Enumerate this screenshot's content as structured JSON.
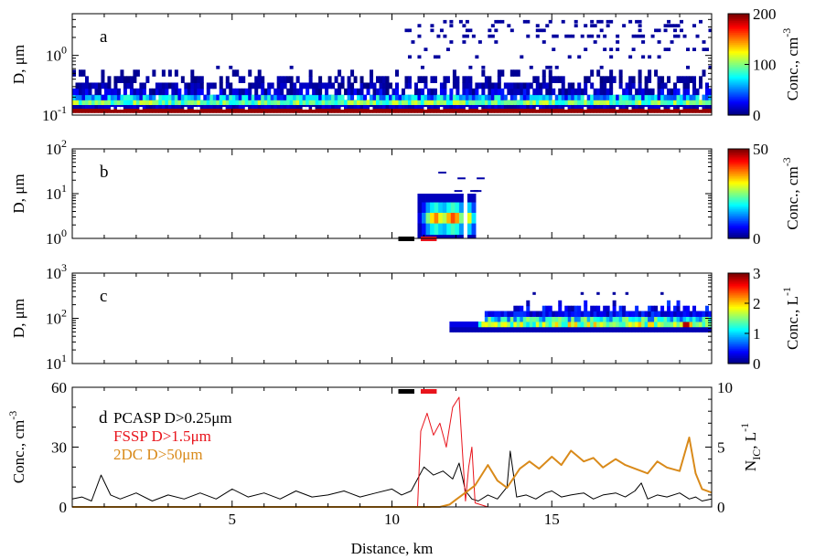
{
  "chart_data": [
    {
      "panel": "a",
      "type": "heatmap",
      "ylabel": "D, μm",
      "yscale": "log",
      "ylim": [
        0.1,
        5
      ],
      "yticks": [
        {
          "v": 0.1,
          "b": "10",
          "e": "-1"
        },
        {
          "v": 1,
          "b": "10",
          "e": "0"
        }
      ],
      "colorbar": {
        "label": "Conc., cm",
        "exp": "-3",
        "ticks": [
          "0",
          "100",
          "200"
        ]
      },
      "band_bins": [
        0.11,
        0.13,
        0.15,
        0.18,
        0.22,
        0.28,
        0.35,
        0.45
      ],
      "sparse_bins": [
        0.6,
        0.9,
        1.2,
        1.6,
        2.0,
        2.5,
        3.0,
        3.5
      ],
      "sparse_region_km": [
        10.3,
        20
      ]
    },
    {
      "panel": "b",
      "type": "heatmap",
      "ylabel": "D, μm",
      "yscale": "log",
      "ylim": [
        1,
        100
      ],
      "yticks": [
        {
          "v": 1,
          "b": "10",
          "e": "0"
        },
        {
          "v": 10,
          "b": "10",
          "e": "1"
        },
        {
          "v": 100,
          "b": "10",
          "e": "2"
        }
      ],
      "colorbar": {
        "label": "Conc., cm",
        "exp": "-3",
        "ticks": [
          "0",
          "50"
        ]
      },
      "xrange_km": [
        10.8,
        12.6
      ],
      "intensity": [
        0.1,
        0.25,
        0.5,
        0.65,
        0.75,
        0.6,
        0.55,
        0.7,
        0.8,
        0.72,
        0.5,
        0.3,
        0.6,
        0.35
      ],
      "markers": [
        {
          "x0": 10.2,
          "x1": 10.7,
          "color": "#000000"
        },
        {
          "x0": 10.9,
          "x1": 11.4,
          "color": "#e8141c"
        }
      ]
    },
    {
      "panel": "c",
      "type": "heatmap",
      "ylabel": "D, μm",
      "yscale": "log",
      "ylim": [
        10,
        1000
      ],
      "yticks": [
        {
          "v": 10,
          "b": "10",
          "e": "1"
        },
        {
          "v": 100,
          "b": "10",
          "e": "2"
        },
        {
          "v": 1000,
          "b": "10",
          "e": "3"
        }
      ],
      "colorbar": {
        "label": "Conc., L",
        "exp": "-1",
        "ticks": [
          "0",
          "1",
          "2",
          "3"
        ]
      },
      "xrange_km": [
        11.8,
        20
      ]
    },
    {
      "panel": "d",
      "type": "line",
      "xlabel": "Distance, km",
      "xlim": [
        0,
        20
      ],
      "xticks": [
        5,
        10,
        15
      ],
      "ylabel": "Conc., cm",
      "ylabel_exp": "-3",
      "ylim": [
        0,
        60
      ],
      "yticks": [
        0,
        30,
        60
      ],
      "y2label": "N",
      "y2label_sub": "IC",
      "y2label_tail": ", L",
      "y2label_exp": "-1",
      "y2lim": [
        0,
        10
      ],
      "y2ticks": [
        0,
        5,
        10
      ],
      "legend": [
        {
          "name": "PCASP D>0.25",
          "unit": "μm",
          "color": "#000000"
        },
        {
          "name": "FSSP D>1.5",
          "unit": "μm",
          "color": "#e8141c"
        },
        {
          "name": "2DC D>50",
          "unit": "μm",
          "color": "#d98a1a"
        }
      ],
      "markers": [
        {
          "x0": 10.2,
          "x1": 10.7,
          "color": "#000000"
        },
        {
          "x0": 10.9,
          "x1": 11.4,
          "color": "#e8141c"
        }
      ],
      "series": [
        {
          "name": "PCASP D>0.25μm",
          "axis": "left",
          "color": "#000000",
          "x": [
            0,
            0.3,
            0.6,
            0.9,
            1.2,
            1.5,
            2,
            2.5,
            3,
            3.5,
            4,
            4.5,
            5,
            5.5,
            6,
            6.5,
            7,
            7.5,
            8,
            8.5,
            9,
            9.5,
            10,
            10.3,
            10.6,
            10.8,
            11,
            11.3,
            11.6,
            11.9,
            12.1,
            12.3,
            12.5,
            12.7,
            13,
            13.3,
            13.6,
            13.7,
            13.9,
            14.2,
            14.5,
            14.8,
            15,
            15.3,
            15.6,
            16,
            16.3,
            16.6,
            17,
            17.3,
            17.6,
            17.8,
            18,
            18.3,
            18.6,
            19,
            19.3,
            19.5,
            19.7,
            20
          ],
          "y": [
            4,
            5,
            3,
            16,
            6,
            4,
            7,
            3,
            6,
            4,
            7,
            4,
            9,
            5,
            7,
            4,
            8,
            5,
            6,
            8,
            5,
            7,
            9,
            6,
            8,
            14,
            20,
            16,
            18,
            14,
            22,
            8,
            4,
            3,
            6,
            4,
            10,
            28,
            5,
            6,
            4,
            7,
            8,
            5,
            6,
            7,
            4,
            6,
            7,
            5,
            8,
            12,
            4,
            6,
            5,
            7,
            4,
            5,
            3,
            4
          ]
        },
        {
          "name": "FSSP D>1.5μm",
          "axis": "left",
          "color": "#e8141c",
          "x": [
            0,
            5,
            10,
            10.8,
            10.9,
            11.1,
            11.3,
            11.5,
            11.7,
            11.9,
            12.1,
            12.3,
            12.4,
            12.5,
            12.6,
            13,
            15,
            20
          ],
          "y": [
            0,
            0,
            0,
            0,
            38,
            47,
            36,
            42,
            30,
            50,
            55,
            3,
            20,
            30,
            2,
            0,
            0,
            0
          ]
        },
        {
          "name": "2DC D>50μm",
          "axis": "right",
          "color": "#d98a1a",
          "x": [
            0,
            5,
            10,
            11.5,
            11.8,
            12,
            12.3,
            12.6,
            13,
            13.3,
            13.6,
            14,
            14.3,
            14.6,
            15,
            15.3,
            15.6,
            16,
            16.3,
            16.6,
            17,
            17.3,
            17.6,
            18,
            18.3,
            18.6,
            19,
            19.3,
            19.5,
            19.7,
            20
          ],
          "y": [
            0,
            0,
            0,
            0,
            0.2,
            0.6,
            1.2,
            1.8,
            3.5,
            2.2,
            1.6,
            3.2,
            3.8,
            3.2,
            4.2,
            3.5,
            4.7,
            3.8,
            4.1,
            3.3,
            4.0,
            3.5,
            3.2,
            2.8,
            3.8,
            3.3,
            3.0,
            5.8,
            2.8,
            1.5,
            1.2
          ]
        }
      ]
    }
  ]
}
